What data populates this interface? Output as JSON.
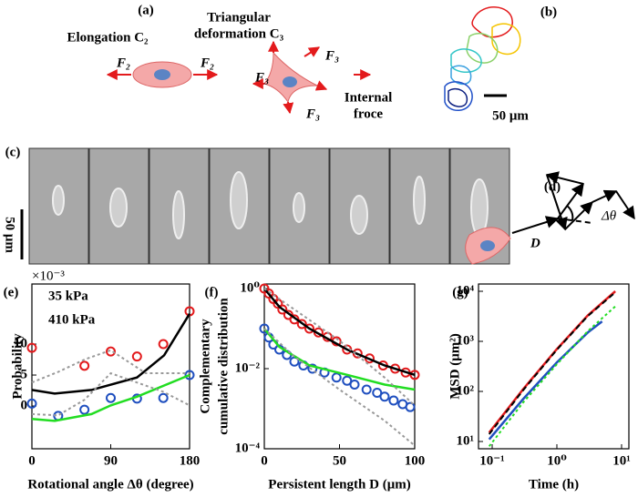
{
  "figure": {
    "a": {
      "label": "(a)",
      "elongation": "Elongation C₂",
      "triangular": [
        "Triangular",
        "deformation C₃"
      ],
      "f2": "F₂",
      "f3": "F₃",
      "internal": [
        "Internal",
        "froce"
      ]
    },
    "b": {
      "label": "(b)",
      "scale": "50 μm"
    },
    "c": {
      "label": "(c)",
      "scale": "50 μm"
    },
    "d": {
      "label": "(d)",
      "angle": "Δθ",
      "length": "D"
    }
  },
  "chart_data": [
    {
      "type": "line",
      "panel": "(e)",
      "xlabel": "Rotational angle Δθ (degree)",
      "ylabel": "Probability",
      "ymultiplier": "×10⁻³",
      "xlim": [
        0,
        180
      ],
      "ylim": [
        -6.9,
        19.7
      ],
      "xticks": [
        0,
        90,
        180
      ],
      "yticks": [
        0,
        5,
        10
      ],
      "series": [
        {
          "name": "35 kPa",
          "color": "#e31a1c",
          "style": "markers",
          "x": [
            0,
            60,
            90,
            120,
            150,
            180
          ],
          "values": [
            9.4,
            6.5,
            8.8,
            8,
            10,
            15.3
          ]
        },
        {
          "name": "410 kPa",
          "color": "#1f4fbf",
          "style": "markers",
          "x": [
            0,
            30,
            60,
            90,
            120,
            150,
            180
          ],
          "values": [
            0.4,
            -1.6,
            -0.6,
            1.3,
            1.2,
            1.3,
            5
          ]
        },
        {
          "color": "#000000",
          "style": "line",
          "x": [
            0,
            26,
            68,
            120,
            151,
            180
          ],
          "values": [
            2.6,
            2,
            2.6,
            4.6,
            8.2,
            14.9
          ]
        },
        {
          "color": "#22dd22",
          "style": "line",
          "x": [
            0,
            26,
            68,
            90,
            120,
            180
          ],
          "values": [
            -2.1,
            -2.4,
            -1.3,
            0.1,
            1.5,
            5
          ]
        },
        {
          "color": "#999999",
          "style": "dotted",
          "x": [
            0,
            30,
            60,
            90,
            130,
            180
          ],
          "values": [
            3.8,
            5.5,
            7.5,
            9,
            5.3,
            5.3
          ]
        },
        {
          "color": "#999999",
          "style": "dotted",
          "x": [
            0,
            30,
            60,
            90,
            150,
            180
          ],
          "values": [
            -1.3,
            -1.5,
            1,
            5.3,
            2.3,
            0.1
          ]
        }
      ]
    },
    {
      "type": "line",
      "panel": "(f)",
      "xlabel": "Persistent length D (μm)",
      "ylabel": [
        "Complementary",
        "cumulative distribution"
      ],
      "ylog": true,
      "xlim": [
        0,
        100
      ],
      "ylim": [
        0.0001,
        1.3
      ],
      "xticks": [
        0,
        50,
        100
      ],
      "yticks": [
        {
          "value": 1,
          "label": "10⁰"
        },
        {
          "value": 0.01,
          "label": "10⁻²"
        },
        {
          "value": 0.0001,
          "label": "10⁻⁴"
        }
      ],
      "series": [
        {
          "color": "#e31a1c",
          "style": "markers",
          "x": [
            0,
            3,
            6,
            9,
            12,
            16,
            20,
            25,
            30,
            36,
            42,
            48,
            55,
            62,
            70,
            79,
            87,
            94,
            100
          ],
          "values": [
            1,
            0.75,
            0.55,
            0.42,
            0.3,
            0.22,
            0.17,
            0.13,
            0.1,
            0.08,
            0.062,
            0.048,
            0.03,
            0.024,
            0.018,
            0.012,
            0.01,
            0.008,
            0.007
          ]
        },
        {
          "color": "#1f4fbf",
          "style": "markers",
          "x": [
            0,
            3,
            6,
            10,
            15,
            20,
            26,
            32,
            40,
            48,
            55,
            60,
            68,
            75,
            80,
            86,
            92,
            97
          ],
          "values": [
            0.1,
            0.06,
            0.04,
            0.03,
            0.022,
            0.015,
            0.012,
            0.01,
            0.008,
            0.006,
            0.005,
            0.004,
            0.003,
            0.0025,
            0.002,
            0.0016,
            0.0013,
            0.0011
          ]
        },
        {
          "color": "#000000",
          "style": "line",
          "x": [
            0,
            10,
            30,
            55,
            80,
            100
          ],
          "values": [
            1,
            0.35,
            0.1,
            0.03,
            0.012,
            0.007
          ]
        },
        {
          "color": "#22dd22",
          "style": "line",
          "x": [
            0,
            10,
            30,
            55,
            80,
            100
          ],
          "values": [
            0.1,
            0.035,
            0.012,
            0.007,
            0.004,
            0.003
          ]
        },
        {
          "color": "#999999",
          "style": "dotted",
          "x": [
            0,
            20,
            50,
            80,
            100
          ],
          "values": [
            1,
            0.3,
            0.05,
            0.006,
            0.0012
          ]
        },
        {
          "color": "#999999",
          "style": "dotted",
          "x": [
            0,
            20,
            50,
            80,
            100
          ],
          "values": [
            0.1,
            0.02,
            0.003,
            0.0005,
            0.00012
          ]
        }
      ]
    },
    {
      "type": "line",
      "panel": "(g)",
      "xlabel": "Time (h)",
      "ylabel": "MSD (μm²)",
      "xlog": true,
      "ylog": true,
      "xlim": [
        0.0615,
        12.97
      ],
      "ylim": [
        7.16,
        13977
      ],
      "xticks": [
        {
          "value": 0.1,
          "label": "10⁻¹"
        },
        {
          "value": 1,
          "label": "10⁰"
        },
        {
          "value": 10,
          "label": "10¹"
        }
      ],
      "yticks": [
        {
          "value": 10,
          "label": "10¹"
        },
        {
          "value": 100,
          "label": "10²"
        },
        {
          "value": 1000,
          "label": "10³"
        },
        {
          "value": 10000,
          "label": "10⁴"
        }
      ],
      "series": [
        {
          "color": "#e31a1c",
          "style": "line",
          "x": [
            0.09,
            0.3,
            1,
            3,
            8
          ],
          "values": [
            15,
            110,
            700,
            3300,
            10000
          ]
        },
        {
          "color": "#000000",
          "style": "dashed",
          "x": [
            0.09,
            0.3,
            1,
            3,
            8
          ],
          "values": [
            14,
            105,
            680,
            3200,
            9500
          ]
        },
        {
          "color": "#1f4fbf",
          "style": "line",
          "x": [
            0.09,
            0.3,
            1,
            3,
            5
          ],
          "values": [
            11,
            70,
            380,
            1500,
            2500
          ]
        },
        {
          "color": "#22dd22",
          "style": "dotted",
          "x": [
            0.09,
            0.3,
            1,
            3,
            8
          ],
          "values": [
            8,
            60,
            350,
            1600,
            5000
          ]
        }
      ]
    }
  ]
}
